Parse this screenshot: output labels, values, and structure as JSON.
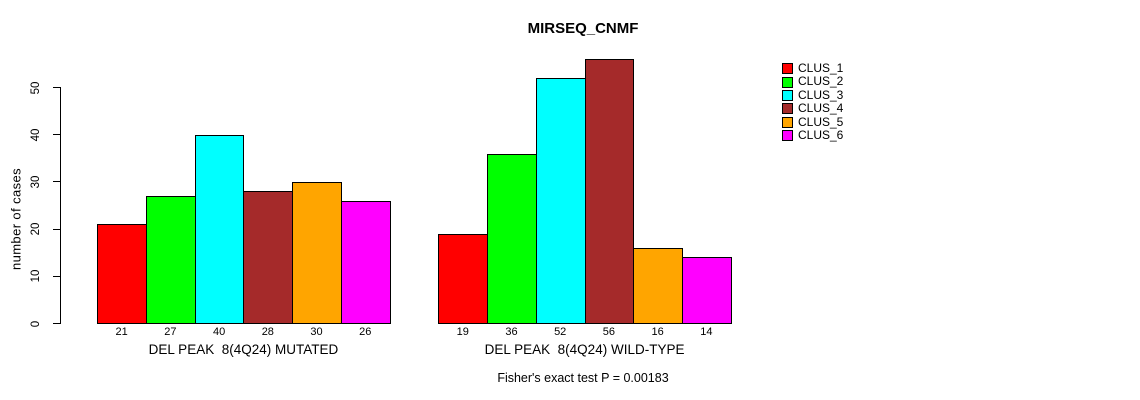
{
  "chart": {
    "title": "MIRSEQ_CNMF",
    "ylabel": "number of cases",
    "footer": "Fisher's exact test P = 0.00183"
  },
  "chart_data": {
    "type": "bar",
    "title": "MIRSEQ_CNMF",
    "xlabel": "",
    "ylabel": "number of cases",
    "ylim": [
      0,
      56
    ],
    "yticks": [
      0,
      10,
      20,
      30,
      40,
      50
    ],
    "grid": false,
    "legend_position": "top-right",
    "annotation": "Fisher's exact test P = 0.00183",
    "series_names": [
      "CLUS_1",
      "CLUS_2",
      "CLUS_3",
      "CLUS_4",
      "CLUS_5",
      "CLUS_6"
    ],
    "series_colors": [
      "#FF0000",
      "#00FF00",
      "#00FFFF",
      "#A52A2A",
      "#FFA500",
      "#FF00FF"
    ],
    "groups": [
      {
        "label": "DEL PEAK  8(4Q24) MUTATED",
        "values": [
          21,
          27,
          40,
          28,
          30,
          26
        ]
      },
      {
        "label": "DEL PEAK  8(4Q24) WILD-TYPE",
        "values": [
          19,
          36,
          52,
          56,
          16,
          14
        ]
      }
    ]
  }
}
